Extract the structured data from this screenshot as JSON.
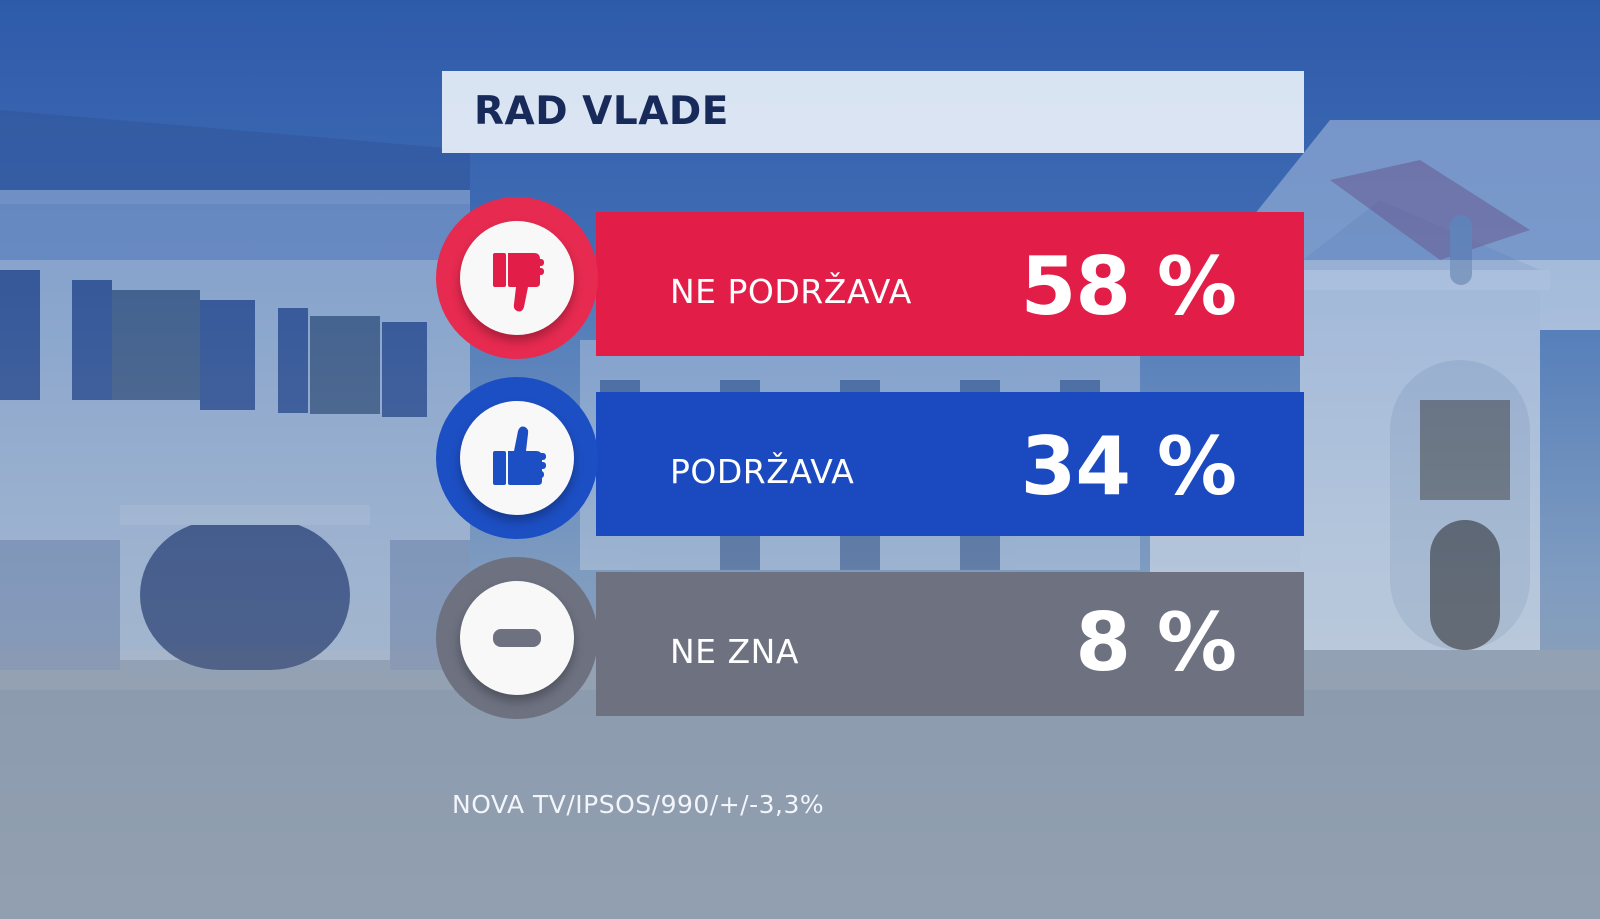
{
  "title": "RAD VLADE",
  "chart_data": {
    "type": "bar",
    "title": "RAD VLADE",
    "categories": [
      "NE PODRŽAVA",
      "PODRŽAVA",
      "NE ZNA"
    ],
    "values": [
      58,
      34,
      8
    ],
    "value_labels": [
      "58 %",
      "34 %",
      "8 %"
    ]
  },
  "rows": [
    {
      "label": "NE PODRŽAVA",
      "value": "58 %",
      "icon": "thumbs-down-icon",
      "color": "#e21d48",
      "ring_color": "#e72a50",
      "icon_color": "#e21d48"
    },
    {
      "label": "PODRŽAVA",
      "value": "34 %",
      "icon": "thumbs-up-icon",
      "color": "#1b49c0",
      "ring_color": "#1d4fc4",
      "icon_color": "#1d4fc4"
    },
    {
      "label": "NE ZNA",
      "value": "8 %",
      "icon": "minus-icon",
      "color": "#6e7280",
      "ring_color": "#6d7180",
      "icon_color": "#6d7180"
    }
  ],
  "source": "NOVA TV/IPSOS/990/+/-3,3%"
}
